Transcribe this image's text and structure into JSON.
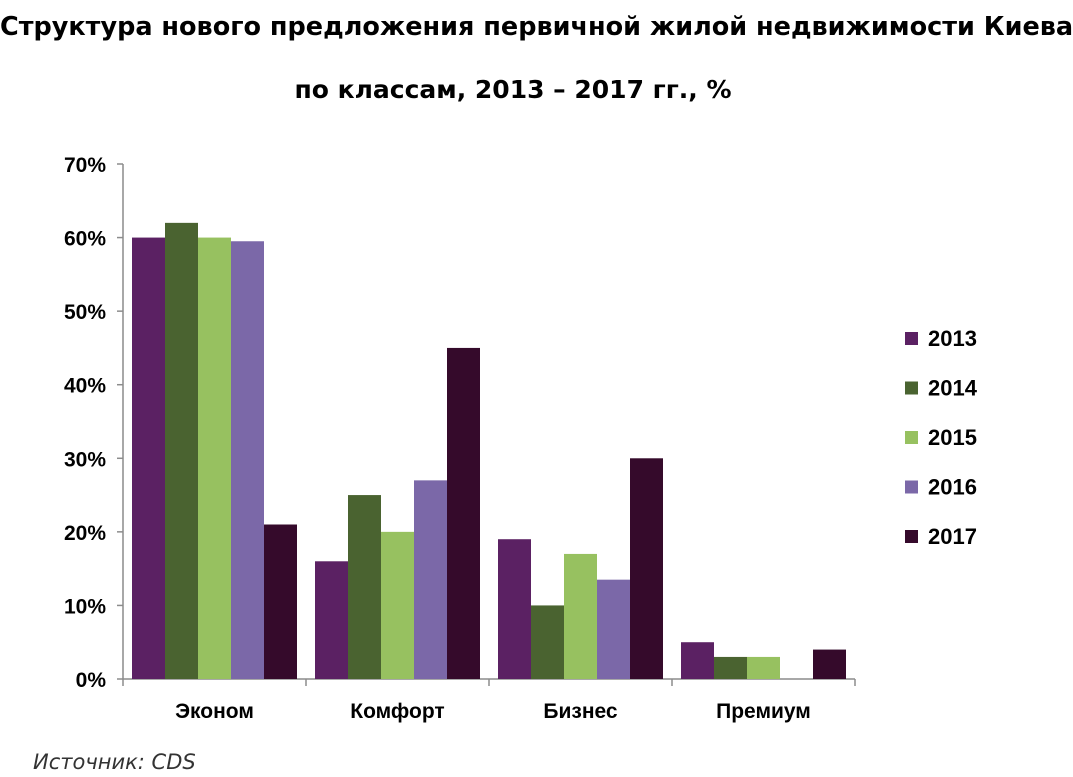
{
  "title_line1": "Структура нового предложения первичной жилой недвижимости Киева",
  "title_line2": "по классам, 2013 – 2017 гг., %",
  "source": "Источник: CDS",
  "colors": {
    "2013": "#5b2163",
    "2014": "#4a6330",
    "2015": "#97c160",
    "2016": "#7b68a8",
    "2017": "#350a2b",
    "axis": "#8c8c8c"
  },
  "chart_data": {
    "type": "bar",
    "title": "Структура нового предложения первичной жилой недвижимости Киева по классам, 2013 – 2017 гг., %",
    "categories": [
      "Эконом",
      "Комфорт",
      "Бизнес",
      "Премиум"
    ],
    "series": [
      {
        "name": "2013",
        "values": [
          60,
          16,
          19,
          5
        ]
      },
      {
        "name": "2014",
        "values": [
          62,
          25,
          10,
          3
        ]
      },
      {
        "name": "2015",
        "values": [
          60,
          20,
          17,
          3
        ]
      },
      {
        "name": "2016",
        "values": [
          59.5,
          27,
          13.5,
          0
        ]
      },
      {
        "name": "2017",
        "values": [
          21,
          45,
          30,
          4
        ]
      }
    ],
    "ylim": [
      0,
      70
    ],
    "yticks": [
      "0%",
      "10%",
      "20%",
      "30%",
      "40%",
      "50%",
      "60%",
      "70%"
    ],
    "xlabel": "",
    "ylabel": "",
    "grid": false,
    "legend": "right"
  }
}
